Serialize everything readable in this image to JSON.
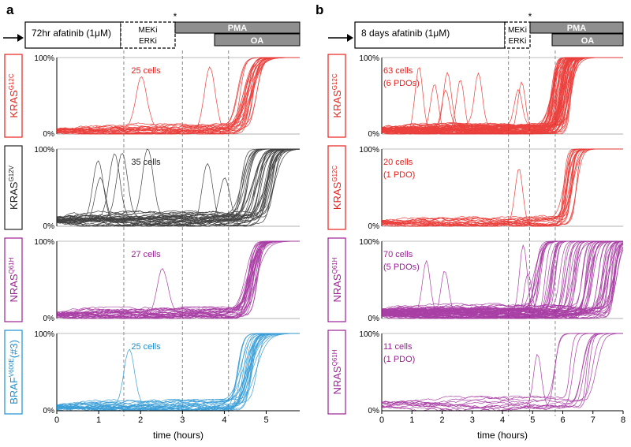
{
  "colors": {
    "red": "#e8201c",
    "black": "#222222",
    "purple": "#9b1f96",
    "blue": "#1b8fd1",
    "grey_box": "#8f8f8f",
    "grey_line": "#8a8a8a"
  },
  "panels": [
    {
      "letter": "a",
      "timeline": {
        "treatment_text": "72hr  afatinib (1μM)",
        "meki": "MEKi",
        "erki": "ERKi",
        "star": "*",
        "pma": "PMA",
        "oa": "OA"
      },
      "xlabel": "time (hours)",
      "xticks": [
        "0",
        "1",
        "2",
        "3",
        "4",
        "5"
      ]
    },
    {
      "letter": "b",
      "timeline": {
        "treatment_text": "8 days  afatinib (1μM)",
        "meki": "MEKi",
        "erki": "ERKi",
        "star": "*",
        "pma": "PMA",
        "oa": "OA"
      },
      "xlabel": "time (hours)",
      "xticks": [
        "0",
        "1",
        "2",
        "3",
        "4",
        "5",
        "6",
        "7",
        "8"
      ]
    }
  ],
  "chart_data": [
    {
      "type": "line",
      "title": "a",
      "xlabel": "time (hours)",
      "ylabel": "",
      "xlim": [
        0,
        5.8
      ],
      "x_ticks": [
        0,
        1,
        2,
        3,
        4,
        5
      ],
      "events_hours": [
        1.6,
        3.0,
        4.1
      ],
      "rows": [
        {
          "genotype": "KRAS",
          "superscript": "G12C",
          "label_suffix": "",
          "annotation": "25 cells",
          "annotation2": "",
          "color": "#e8201c",
          "ylim": [
            0,
            100
          ],
          "y_ticks": [
            "0%",
            "100%"
          ],
          "summary": {
            "n_traces": 25,
            "baseline_percent": 5,
            "rise_start_hours": 4.3,
            "rise_end_hours": 4.8,
            "plateau_percent": 100
          }
        },
        {
          "genotype": "KRAS",
          "superscript": "G12V",
          "label_suffix": "",
          "annotation": "35 cells",
          "annotation2": "",
          "color": "#222222",
          "ylim": [
            0,
            100
          ],
          "y_ticks": [
            "0%",
            "100%"
          ],
          "summary": {
            "n_traces": 35,
            "baseline_percent": 8,
            "rise_start_hours": 4.4,
            "rise_end_hours": 5.2,
            "plateau_percent": 100
          }
        },
        {
          "genotype": "NRAS",
          "superscript": "Q61H",
          "label_suffix": "",
          "annotation": "27 cells",
          "annotation2": "",
          "color": "#9b1f96",
          "ylim": [
            0,
            100
          ],
          "y_ticks": [
            "0%",
            "100%"
          ],
          "summary": {
            "n_traces": 27,
            "baseline_percent": 5,
            "rise_start_hours": 4.5,
            "rise_end_hours": 4.8,
            "plateau_percent": 100
          }
        },
        {
          "genotype": "BRAF",
          "superscript": "V600E",
          "label_suffix": "(#3)",
          "annotation": "25 cells",
          "annotation2": "",
          "color": "#1b8fd1",
          "ylim": [
            0,
            100
          ],
          "y_ticks": [
            "0%",
            "100%"
          ],
          "summary": {
            "n_traces": 25,
            "baseline_percent": 5,
            "rise_start_hours": 4.3,
            "rise_end_hours": 4.8,
            "plateau_percent": 100
          }
        }
      ]
    },
    {
      "type": "line",
      "title": "b",
      "xlabel": "time (hours)",
      "ylabel": "",
      "xlim": [
        0,
        8
      ],
      "x_ticks": [
        0,
        1,
        2,
        3,
        4,
        5,
        6,
        7,
        8
      ],
      "events_hours": [
        4.2,
        4.9,
        5.75
      ],
      "rows": [
        {
          "genotype": "KRAS",
          "superscript": "G12C",
          "label_suffix": "",
          "annotation": "63 cells",
          "annotation2": "(6 PDOs)",
          "color": "#e8201c",
          "ylim": [
            0,
            100
          ],
          "y_ticks": [
            "0%",
            "100%"
          ],
          "summary": {
            "n_traces": 63,
            "baseline_percent": 5,
            "rise_start_hours": 5.6,
            "rise_end_hours": 6.3,
            "plateau_percent": 100
          }
        },
        {
          "genotype": "KRAS",
          "superscript": "G12C",
          "label_suffix": "",
          "annotation": "20 cells",
          "annotation2": "(1 PDO)",
          "color": "#e8201c",
          "ylim": [
            0,
            100
          ],
          "y_ticks": [
            "0%",
            "100%"
          ],
          "summary": {
            "n_traces": 20,
            "baseline_percent": 5,
            "rise_start_hours": 6.0,
            "rise_end_hours": 6.5,
            "plateau_percent": 100
          }
        },
        {
          "genotype": "NRAS",
          "superscript": "Q61H",
          "label_suffix": "",
          "annotation": "70 cells",
          "annotation2": "(5 PDOs)",
          "color": "#9b1f96",
          "ylim": [
            0,
            100
          ],
          "y_ticks": [
            "0%",
            "100%"
          ],
          "summary": {
            "n_traces": 70,
            "baseline_percent": 8,
            "rise_start_hours": 5.0,
            "rise_end_hours": 7.8,
            "plateau_percent": 100
          }
        },
        {
          "genotype": "NRAS",
          "superscript": "Q61H",
          "label_suffix": "",
          "annotation": "11 cells",
          "annotation2": "(1 PDO)",
          "color": "#9b1f96",
          "ylim": [
            0,
            100
          ],
          "y_ticks": [
            "0%",
            "100%"
          ],
          "summary": {
            "n_traces": 11,
            "baseline_percent": 8,
            "rise_start_hours": 5.0,
            "rise_end_hours": 7.5,
            "plateau_percent": 100
          }
        }
      ]
    }
  ]
}
